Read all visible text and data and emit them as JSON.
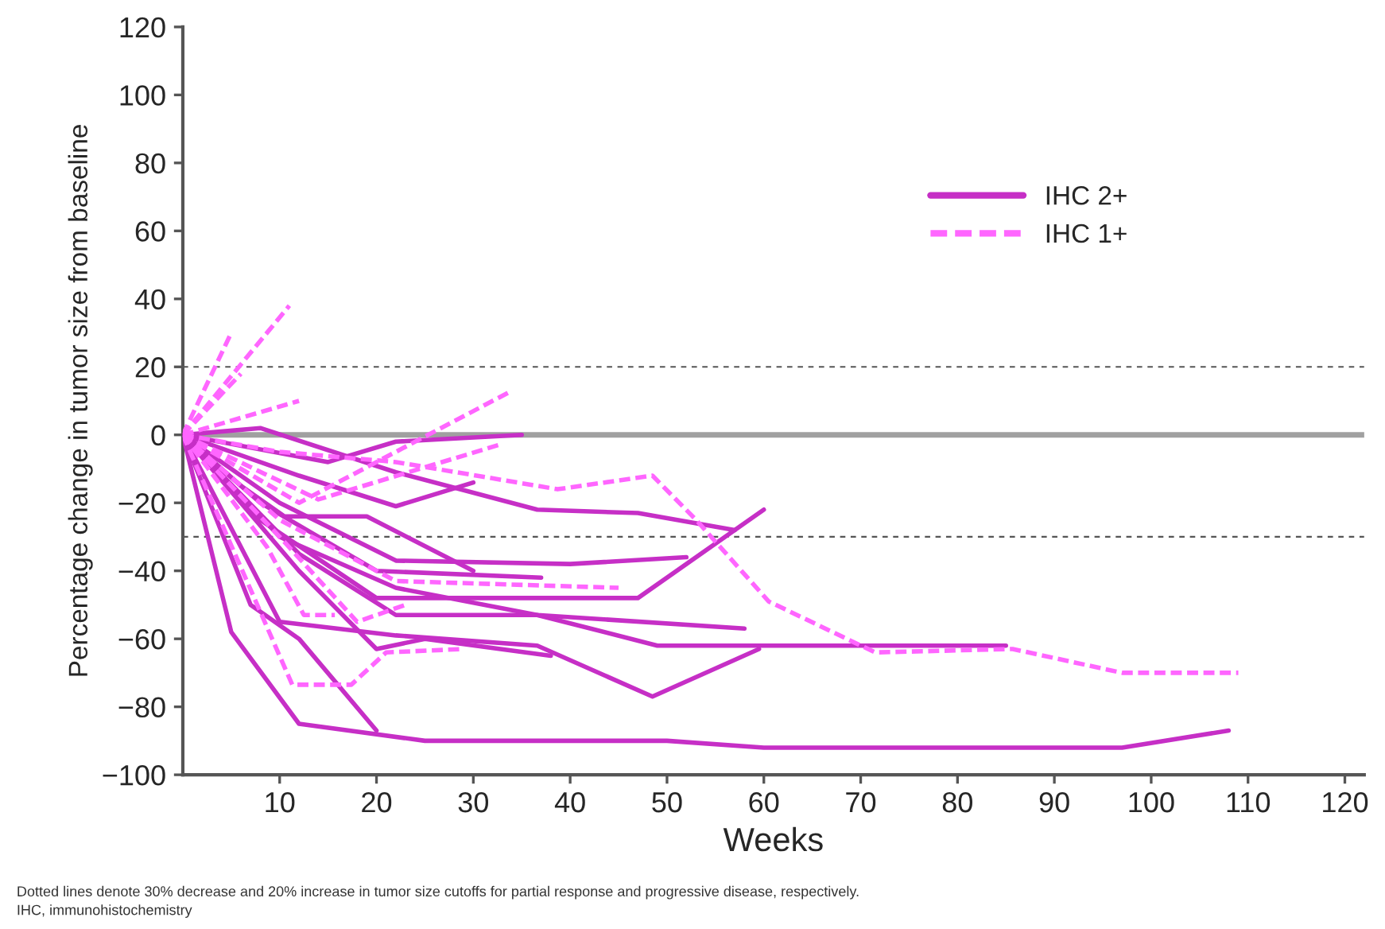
{
  "chart_data": {
    "type": "line",
    "xlabel": "Weeks",
    "ylabel": "Percentage change in tumor size from baseline",
    "xlim": [
      0,
      122
    ],
    "xticks": [
      10,
      20,
      30,
      40,
      50,
      60,
      70,
      80,
      90,
      100,
      110,
      120
    ],
    "ylim": [
      -100,
      120
    ],
    "yticks": [
      -100,
      -80,
      -60,
      -40,
      -20,
      0,
      20,
      40,
      60,
      80,
      100,
      120
    ],
    "grid": false,
    "legend": "top right",
    "marker": "none",
    "ref_lines": [
      {
        "axis": "y",
        "value": 0,
        "color": "#a0a0a0",
        "line_style": "solid"
      },
      {
        "axis": "y",
        "value": 20,
        "color": "#555555",
        "line_style": "dashed"
      },
      {
        "axis": "y",
        "value": -30,
        "color": "#555555",
        "line_style": "dashed"
      }
    ],
    "annotations": [
      "Dotted lines denote 30% decrease and 20% increase in tumor size cutoffs for partial response and progressive disease, respectively.",
      "IHC, immunohistochemistry"
    ],
    "series": [
      {
        "name": "IHC 2+",
        "color": "#c62fc6",
        "line_style": "solid",
        "x": [
          0,
          5,
          12,
          25,
          50,
          60,
          97,
          108
        ],
        "values": [
          0,
          -58,
          -85,
          -90,
          -90,
          -92,
          -92,
          -87
        ]
      },
      {
        "color": "#c62fc6",
        "line_style": "solid",
        "x": [
          0,
          7,
          12,
          20
        ],
        "values": [
          0,
          -50,
          -60,
          -87
        ]
      },
      {
        "color": "#c62fc6",
        "line_style": "solid",
        "x": [
          0,
          10,
          22,
          36.6,
          48.5,
          59.5
        ],
        "values": [
          0,
          -55,
          -59,
          -62,
          -77,
          -63
        ]
      },
      {
        "color": "#c62fc6",
        "line_style": "solid",
        "x": [
          0,
          12,
          22,
          36.6,
          49,
          85
        ],
        "values": [
          0,
          -35,
          -53,
          -53,
          -62,
          -62
        ]
      },
      {
        "color": "#c62fc6",
        "line_style": "solid",
        "x": [
          0,
          10,
          22,
          36.6,
          58
        ],
        "values": [
          0,
          -30,
          -45,
          -53,
          -57
        ]
      },
      {
        "color": "#c62fc6",
        "line_style": "solid",
        "x": [
          0,
          8,
          20,
          47,
          60
        ],
        "values": [
          0,
          -25,
          -48,
          -48,
          -22
        ]
      },
      {
        "color": "#c62fc6",
        "line_style": "solid",
        "x": [
          0,
          10,
          22,
          40,
          52
        ],
        "values": [
          0,
          -20,
          -37,
          -38,
          -36
        ]
      },
      {
        "color": "#c62fc6",
        "line_style": "solid",
        "x": [
          0,
          8,
          22,
          36.6,
          47,
          57
        ],
        "values": [
          0,
          2,
          -11,
          -22,
          -23,
          -28
        ]
      },
      {
        "color": "#c62fc6",
        "line_style": "solid",
        "x": [
          0,
          15,
          22,
          35
        ],
        "values": [
          0,
          -8,
          -2,
          0
        ]
      },
      {
        "color": "#c62fc6",
        "line_style": "solid",
        "x": [
          0,
          12,
          22,
          30
        ],
        "values": [
          0,
          -12,
          -21,
          -14
        ]
      },
      {
        "color": "#c62fc6",
        "line_style": "solid",
        "x": [
          0,
          8,
          20,
          37
        ],
        "values": [
          0,
          -20,
          -40,
          -42
        ]
      },
      {
        "color": "#c62fc6",
        "line_style": "solid",
        "x": [
          0,
          6,
          10.5,
          19,
          30
        ],
        "values": [
          0,
          -15,
          -24,
          -24,
          -40
        ]
      },
      {
        "color": "#c62fc6",
        "line_style": "solid",
        "x": [
          0,
          12,
          20,
          25,
          38
        ],
        "values": [
          0,
          -40,
          -63,
          -60,
          -65
        ]
      },
      {
        "name": "IHC 1+",
        "color": "#ff66ff",
        "line_style": "dashed",
        "x": [
          0,
          10,
          22,
          38.7,
          48.5,
          53,
          60.5,
          71.5,
          85.7,
          97,
          109
        ],
        "values": [
          0,
          -5,
          -8,
          -16,
          -12,
          -25,
          -49,
          -64,
          -63,
          -70,
          -70
        ]
      },
      {
        "color": "#ff66ff",
        "line_style": "dashed",
        "x": [
          0,
          5
        ],
        "values": [
          0,
          30
        ]
      },
      {
        "color": "#ff66ff",
        "line_style": "dashed",
        "x": [
          0,
          11
        ],
        "values": [
          0,
          38
        ]
      },
      {
        "color": "#ff66ff",
        "line_style": "dashed",
        "x": [
          0,
          6
        ],
        "values": [
          0,
          18
        ]
      },
      {
        "color": "#ff66ff",
        "line_style": "dashed",
        "x": [
          0,
          12
        ],
        "values": [
          0,
          10
        ]
      },
      {
        "color": "#ff66ff",
        "line_style": "dashed",
        "x": [
          0,
          12,
          34
        ],
        "values": [
          0,
          -20,
          13
        ]
      },
      {
        "color": "#ff66ff",
        "line_style": "dashed",
        "x": [
          0,
          14,
          32.6
        ],
        "values": [
          0,
          -19,
          -3
        ]
      },
      {
        "color": "#ff66ff",
        "line_style": "dashed",
        "x": [
          0,
          10,
          22,
          45
        ],
        "values": [
          0,
          -25,
          -43,
          -45
        ]
      },
      {
        "color": "#ff66ff",
        "line_style": "dashed",
        "x": [
          0,
          11.3,
          17.4,
          21,
          29
        ],
        "values": [
          0,
          -73.5,
          -73.5,
          -64,
          -63
        ]
      },
      {
        "color": "#ff66ff",
        "line_style": "dashed",
        "x": [
          0,
          8.7,
          12.5,
          15.7
        ],
        "values": [
          0,
          -33,
          -53,
          -53
        ]
      },
      {
        "color": "#ff66ff",
        "line_style": "dashed",
        "x": [
          0,
          10,
          18,
          23
        ],
        "values": [
          0,
          -30,
          -55,
          -50
        ]
      }
    ]
  }
}
